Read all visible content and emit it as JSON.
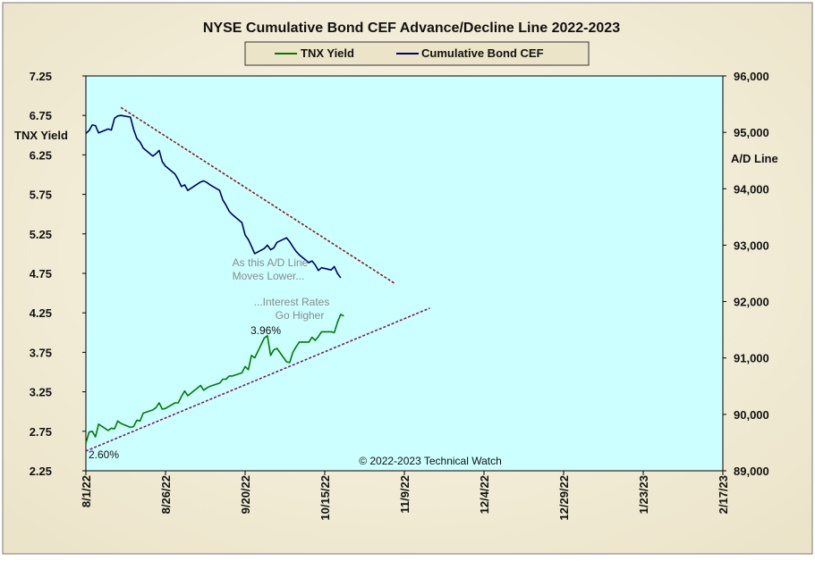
{
  "colors": {
    "bg_outer": "#ece4c9",
    "bg_inner_light": "#faf7ea",
    "plot_bg": "#ccffff",
    "tnx_line": "#007a00",
    "cef_line": "#000066",
    "trend_upper": "#8b1a1a",
    "trend_lower": "#7a1a6a",
    "annotation_text": "#8a8a8a"
  },
  "chart_data": {
    "type": "line",
    "title": "NYSE Cumulative  Bond CEF Advance/Decline  Line 2022-2023",
    "legend": {
      "placement": "top-center",
      "entries": [
        "TNX Yield",
        "Cumulative Bond CEF"
      ]
    },
    "left_axis": {
      "label": "TNX  Yield",
      "range": [
        2.25,
        7.25
      ],
      "ticks": [
        "7.25",
        "6.75",
        "6.25",
        "5.75",
        "5.25",
        "4.75",
        "4.25",
        "3.75",
        "3.25",
        "2.75",
        "2.25"
      ]
    },
    "right_axis": {
      "label": "A/D Line",
      "range": [
        89000,
        96000
      ],
      "ticks": [
        "96,000",
        "95,000",
        "94,000",
        "93,000",
        "92,000",
        "91,000",
        "90,000",
        "89,000"
      ]
    },
    "x_axis": {
      "start": "2022-08-01",
      "end": "2023-02-17",
      "ticks": [
        {
          "label": "8/1/22",
          "date": "2022-08-01"
        },
        {
          "label": "8/26/22",
          "date": "2022-08-26"
        },
        {
          "label": "9/20/22",
          "date": "2022-09-20"
        },
        {
          "label": "10/15/22",
          "date": "2022-10-15"
        },
        {
          "label": "11/9/22",
          "date": "2022-11-09"
        },
        {
          "label": "12/4/22",
          "date": "2022-12-04"
        },
        {
          "label": "12/29/22",
          "date": "2022-12-29"
        },
        {
          "label": "1/23/23",
          "date": "2023-01-23"
        },
        {
          "label": "2/17/23",
          "date": "2023-02-17"
        }
      ]
    },
    "series": [
      {
        "name": "TNX Yield",
        "axis": "left",
        "points": [
          [
            "2022-08-01",
            2.6
          ],
          [
            "2022-08-02",
            2.74
          ],
          [
            "2022-08-03",
            2.75
          ],
          [
            "2022-08-04",
            2.68
          ],
          [
            "2022-08-05",
            2.84
          ],
          [
            "2022-08-08",
            2.76
          ],
          [
            "2022-08-09",
            2.79
          ],
          [
            "2022-08-10",
            2.78
          ],
          [
            "2022-08-11",
            2.88
          ],
          [
            "2022-08-12",
            2.85
          ],
          [
            "2022-08-15",
            2.8
          ],
          [
            "2022-08-16",
            2.81
          ],
          [
            "2022-08-17",
            2.89
          ],
          [
            "2022-08-18",
            2.88
          ],
          [
            "2022-08-19",
            2.98
          ],
          [
            "2022-08-22",
            3.02
          ],
          [
            "2022-08-23",
            3.05
          ],
          [
            "2022-08-24",
            3.11
          ],
          [
            "2022-08-25",
            3.03
          ],
          [
            "2022-08-26",
            3.04
          ],
          [
            "2022-08-29",
            3.11
          ],
          [
            "2022-08-30",
            3.11
          ],
          [
            "2022-08-31",
            3.19
          ],
          [
            "2022-09-01",
            3.26
          ],
          [
            "2022-09-02",
            3.2
          ],
          [
            "2022-09-06",
            3.33
          ],
          [
            "2022-09-07",
            3.27
          ],
          [
            "2022-09-08",
            3.3
          ],
          [
            "2022-09-09",
            3.32
          ],
          [
            "2022-09-12",
            3.36
          ],
          [
            "2022-09-13",
            3.41
          ],
          [
            "2022-09-14",
            3.41
          ],
          [
            "2022-09-15",
            3.45
          ],
          [
            "2022-09-16",
            3.45
          ],
          [
            "2022-09-19",
            3.49
          ],
          [
            "2022-09-20",
            3.57
          ],
          [
            "2022-09-21",
            3.53
          ],
          [
            "2022-09-22",
            3.71
          ],
          [
            "2022-09-23",
            3.68
          ],
          [
            "2022-09-26",
            3.93
          ],
          [
            "2022-09-27",
            3.96
          ],
          [
            "2022-09-28",
            3.71
          ],
          [
            "2022-09-29",
            3.78
          ],
          [
            "2022-09-30",
            3.8
          ],
          [
            "2022-10-03",
            3.63
          ],
          [
            "2022-10-04",
            3.62
          ],
          [
            "2022-10-05",
            3.75
          ],
          [
            "2022-10-06",
            3.82
          ],
          [
            "2022-10-07",
            3.88
          ],
          [
            "2022-10-10",
            3.88
          ],
          [
            "2022-10-11",
            3.94
          ],
          [
            "2022-10-12",
            3.9
          ],
          [
            "2022-10-13",
            3.95
          ],
          [
            "2022-10-14",
            4.01
          ],
          [
            "2022-10-17",
            4.01
          ],
          [
            "2022-10-18",
            4.0
          ],
          [
            "2022-10-19",
            4.13
          ],
          [
            "2022-10-20",
            4.23
          ],
          [
            "2022-10-21",
            4.21
          ]
        ]
      },
      {
        "name": "Cumulative Bond CEF",
        "axis": "right",
        "points": [
          [
            "2022-08-01",
            94980
          ],
          [
            "2022-08-02",
            95030
          ],
          [
            "2022-08-03",
            95130
          ],
          [
            "2022-08-04",
            95120
          ],
          [
            "2022-08-05",
            94990
          ],
          [
            "2022-08-08",
            95060
          ],
          [
            "2022-08-09",
            95040
          ],
          [
            "2022-08-10",
            95250
          ],
          [
            "2022-08-11",
            95290
          ],
          [
            "2022-08-12",
            95300
          ],
          [
            "2022-08-15",
            95270
          ],
          [
            "2022-08-16",
            95050
          ],
          [
            "2022-08-17",
            94890
          ],
          [
            "2022-08-18",
            94830
          ],
          [
            "2022-08-19",
            94720
          ],
          [
            "2022-08-22",
            94580
          ],
          [
            "2022-08-23",
            94620
          ],
          [
            "2022-08-24",
            94680
          ],
          [
            "2022-08-25",
            94480
          ],
          [
            "2022-08-26",
            94400
          ],
          [
            "2022-08-29",
            94260
          ],
          [
            "2022-08-30",
            94160
          ],
          [
            "2022-08-31",
            94040
          ],
          [
            "2022-09-01",
            94070
          ],
          [
            "2022-09-02",
            93970
          ],
          [
            "2022-09-06",
            94120
          ],
          [
            "2022-09-07",
            94140
          ],
          [
            "2022-09-08",
            94110
          ],
          [
            "2022-09-09",
            94070
          ],
          [
            "2022-09-12",
            93970
          ],
          [
            "2022-09-13",
            93800
          ],
          [
            "2022-09-14",
            93710
          ],
          [
            "2022-09-15",
            93600
          ],
          [
            "2022-09-16",
            93540
          ],
          [
            "2022-09-19",
            93400
          ],
          [
            "2022-09-20",
            93180
          ],
          [
            "2022-09-21",
            93100
          ],
          [
            "2022-09-22",
            92980
          ],
          [
            "2022-09-23",
            92850
          ],
          [
            "2022-09-26",
            92940
          ],
          [
            "2022-09-27",
            93000
          ],
          [
            "2022-09-28",
            92920
          ],
          [
            "2022-09-29",
            92950
          ],
          [
            "2022-09-30",
            93050
          ],
          [
            "2022-10-03",
            93130
          ],
          [
            "2022-10-04",
            93060
          ],
          [
            "2022-10-05",
            92970
          ],
          [
            "2022-10-06",
            92890
          ],
          [
            "2022-10-07",
            92830
          ],
          [
            "2022-10-10",
            92690
          ],
          [
            "2022-10-11",
            92720
          ],
          [
            "2022-10-12",
            92650
          ],
          [
            "2022-10-13",
            92550
          ],
          [
            "2022-10-14",
            92600
          ],
          [
            "2022-10-17",
            92560
          ],
          [
            "2022-10-18",
            92620
          ],
          [
            "2022-10-19",
            92500
          ],
          [
            "2022-10-20",
            92420
          ]
        ]
      }
    ],
    "trendlines": [
      {
        "axis": "right",
        "from": [
          "2022-08-12",
          95440
        ],
        "to": [
          "2022-11-06",
          92320
        ]
      },
      {
        "axis": "left",
        "from": [
          "2022-08-01",
          2.5
        ],
        "to": [
          "2022-11-17",
          4.31
        ]
      }
    ],
    "annotations": [
      {
        "id": "start-yield",
        "text": "2.60%"
      },
      {
        "id": "peak-yield",
        "text": "3.96%"
      },
      {
        "id": "ad-lower-1",
        "text": "As this A/D Line"
      },
      {
        "id": "ad-lower-2",
        "text": "Moves  Lower..."
      },
      {
        "id": "rates-higher-1",
        "text": "...Interest Rates"
      },
      {
        "id": "rates-higher-2",
        "text": "Go Higher"
      },
      {
        "id": "copyright",
        "text": "© 2022-2023  Technical  Watch"
      }
    ],
    "grid": false
  }
}
